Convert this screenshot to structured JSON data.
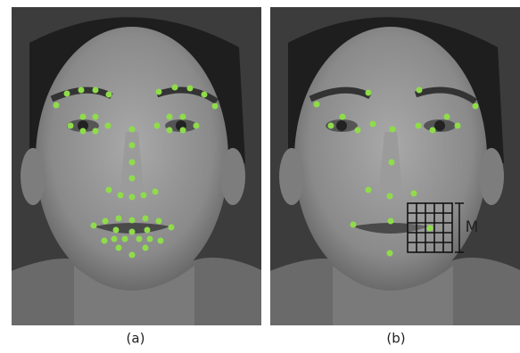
{
  "panels": [
    {
      "label": "(a)"
    },
    {
      "label": "(b)"
    }
  ],
  "grid_label": "M"
}
